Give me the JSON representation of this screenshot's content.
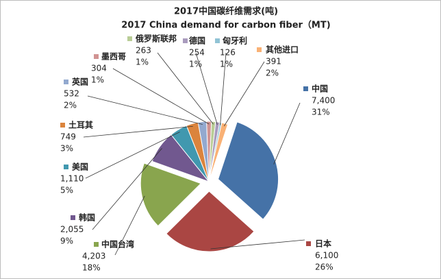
{
  "chart_data": {
    "type": "pie",
    "title": "2017中国碳纤维需求(吨)",
    "subtitle": "2017 China demand for carbon fiber（MT)",
    "categories": [
      "中国",
      "日本",
      "中国台湾",
      "韩国",
      "美国",
      "土耳其",
      "英国",
      "墨西哥",
      "俄罗斯联邦",
      "德国",
      "匈牙利",
      "其他进口"
    ],
    "values": [
      7400,
      6100,
      4203,
      2055,
      1110,
      749,
      532,
      304,
      263,
      254,
      126,
      391
    ],
    "value_labels": [
      "7,400",
      "6,100",
      "4,203",
      "2,055",
      "1,110",
      "749",
      "532",
      "304",
      "263",
      "254",
      "126",
      "391"
    ],
    "percent_labels": [
      "31%",
      "26%",
      "18%",
      "9%",
      "5%",
      "3%",
      "2%",
      "1%",
      "1%",
      "1%",
      "1%",
      "2%"
    ],
    "colors": [
      "#4572a7",
      "#aa4643",
      "#89a54e",
      "#71588f",
      "#4198af",
      "#db843d",
      "#93a9cf",
      "#d19392",
      "#b9cd96",
      "#a99bbd",
      "#91c3d5",
      "#f9b175"
    ]
  }
}
